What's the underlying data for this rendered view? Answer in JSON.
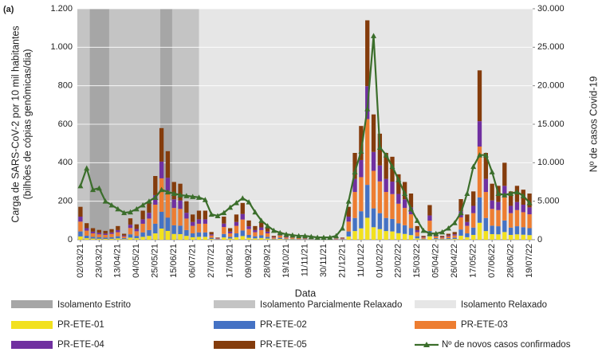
{
  "chart_data": {
    "type": "bar",
    "annotation": "(a)",
    "y_label": [
      "Carga de SARS-CoV-2 por 10 mil habitantes",
      "(bilhões de cópias genômicas/dia)"
    ],
    "y2_label": "Nº de casos Covid-19",
    "x_label": "Data",
    "regions": [
      {
        "name": "Isolamento Estrito",
        "color": "#a6a6a6"
      },
      {
        "name": "Isolamento Parcialmente Relaxado",
        "color": "#c4c4c4"
      },
      {
        "name": "Isolamento Relaxado",
        "color": "#e6e6e6"
      }
    ],
    "categories": [
      "02/03/21",
      null,
      null,
      "23/03/21",
      null,
      null,
      "13/04/21",
      null,
      null,
      "04/05/21",
      null,
      null,
      "25/05/21",
      null,
      null,
      "15/06/21",
      null,
      null,
      "06/07/21",
      null,
      null,
      "27/07/21",
      null,
      null,
      "17/08/21",
      null,
      null,
      "09/09/21",
      null,
      null,
      "28/09/21",
      null,
      null,
      "19/10/21",
      null,
      null,
      "11/11/21",
      null,
      null,
      "30/11/21",
      null,
      null,
      "21/12/21",
      null,
      null,
      "11/01/22",
      null,
      null,
      "01/02/22",
      null,
      null,
      "22/02/22",
      null,
      null,
      "15/03/22",
      null,
      null,
      "05/04/22",
      null,
      null,
      "26/04/22",
      null,
      null,
      "17/05/22",
      null,
      null,
      "07/06/22",
      null,
      null,
      "28/06/22",
      null,
      null,
      "19/07/22"
    ],
    "ylim": [
      0,
      1200
    ],
    "yticks": [
      0,
      200,
      400,
      600,
      800,
      {
        "value": 1000,
        "label": "1.000"
      },
      {
        "value": 1200,
        "label": "1.200"
      }
    ],
    "y2lim": [
      0,
      30000
    ],
    "y2ticks": [
      0,
      {
        "value": 5000,
        "label": "5.000"
      },
      {
        "value": 10000,
        "label": "10.000"
      },
      {
        "value": 15000,
        "label": "15.000"
      },
      {
        "value": 20000,
        "label": "20.000"
      },
      {
        "value": 25000,
        "label": "25.000"
      },
      {
        "value": 30000,
        "label": "30.000"
      }
    ],
    "stacked": true,
    "series": [
      {
        "name": "PR-ETE-01",
        "color": "#f2e11e",
        "values": [
          17,
          8,
          6,
          5,
          4,
          5,
          7,
          3,
          11,
          8,
          15,
          20,
          33,
          58,
          46,
          30,
          29,
          20,
          13,
          15,
          15,
          4,
          1,
          12,
          6,
          13,
          19,
          10,
          7,
          9,
          6,
          2,
          4,
          2,
          2,
          1,
          1,
          1,
          1,
          0,
          0,
          0,
          1,
          17,
          45,
          59,
          114,
          65,
          55,
          45,
          43,
          34,
          30,
          24,
          7,
          2,
          18,
          3,
          2,
          3,
          4,
          21,
          13,
          25,
          88,
          45,
          29,
          28,
          40,
          25,
          28,
          26,
          24
        ]
      },
      {
        "name": "PR-ETE-02",
        "color": "#4472c4",
        "values": [
          26,
          13,
          9,
          8,
          7,
          8,
          11,
          5,
          17,
          12,
          23,
          30,
          50,
          87,
          69,
          45,
          44,
          30,
          20,
          23,
          23,
          6,
          2,
          18,
          9,
          20,
          29,
          15,
          11,
          14,
          9,
          3,
          6,
          3,
          3,
          2,
          2,
          2,
          1,
          1,
          1,
          1,
          2,
          26,
          68,
          89,
          171,
          98,
          83,
          68,
          65,
          51,
          45,
          36,
          11,
          3,
          27,
          5,
          3,
          5,
          6,
          32,
          20,
          38,
          132,
          68,
          44,
          42,
          60,
          38,
          42,
          39,
          36
        ]
      },
      {
        "name": "PR-ETE-03",
        "color": "#ed7d31",
        "values": [
          51,
          26,
          18,
          15,
          14,
          17,
          21,
          9,
          33,
          24,
          45,
          60,
          99,
          174,
          138,
          90,
          87,
          60,
          39,
          45,
          45,
          12,
          3,
          36,
          18,
          39,
          57,
          30,
          21,
          27,
          18,
          6,
          12,
          6,
          6,
          5,
          3,
          3,
          2,
          2,
          2,
          2,
          3,
          51,
          135,
          177,
          342,
          195,
          165,
          135,
          129,
          102,
          90,
          72,
          21,
          6,
          54,
          9,
          6,
          9,
          12,
          63,
          39,
          75,
          264,
          135,
          87,
          84,
          120,
          75,
          84,
          78,
          72
        ]
      },
      {
        "name": "PR-ETE-04",
        "color": "#7030a0",
        "values": [
          26,
          13,
          9,
          8,
          7,
          8,
          11,
          5,
          17,
          12,
          23,
          30,
          50,
          87,
          69,
          45,
          44,
          30,
          20,
          23,
          23,
          6,
          2,
          18,
          9,
          20,
          29,
          15,
          11,
          14,
          9,
          3,
          6,
          3,
          3,
          2,
          2,
          2,
          1,
          1,
          1,
          1,
          2,
          26,
          68,
          89,
          171,
          98,
          83,
          68,
          65,
          51,
          45,
          36,
          11,
          3,
          27,
          5,
          3,
          5,
          6,
          32,
          20,
          38,
          132,
          68,
          44,
          42,
          60,
          38,
          42,
          39,
          36
        ]
      },
      {
        "name": "PR-ETE-05",
        "color": "#843c0c",
        "values": [
          51,
          26,
          18,
          15,
          14,
          17,
          21,
          9,
          33,
          24,
          45,
          60,
          99,
          174,
          138,
          90,
          87,
          60,
          39,
          45,
          45,
          12,
          3,
          36,
          18,
          39,
          57,
          30,
          21,
          27,
          18,
          6,
          12,
          6,
          6,
          5,
          3,
          3,
          2,
          2,
          2,
          2,
          3,
          51,
          135,
          177,
          342,
          195,
          165,
          135,
          129,
          102,
          90,
          72,
          21,
          6,
          54,
          9,
          6,
          9,
          12,
          63,
          39,
          75,
          264,
          135,
          87,
          84,
          120,
          75,
          84,
          78,
          72
        ]
      },
      {
        "name": "Nº de novos casos confirmados",
        "color": "#3b6e2b",
        "type": "line",
        "axis": "y2",
        "values": [
          7000,
          9300,
          6500,
          6700,
          5000,
          4500,
          4000,
          3500,
          3600,
          4000,
          4500,
          5000,
          5500,
          6500,
          6200,
          6000,
          5800,
          5700,
          5600,
          5500,
          5200,
          3300,
          3100,
          3500,
          4200,
          4800,
          5400,
          4900,
          3600,
          2500,
          1800,
          1200,
          900,
          700,
          600,
          500,
          500,
          400,
          300,
          300,
          300,
          500,
          1500,
          5000,
          8800,
          11500,
          17000,
          26500,
          12000,
          11000,
          9500,
          7800,
          6000,
          4000,
          2500,
          1200,
          800,
          800,
          1000,
          1500,
          2200,
          3500,
          6000,
          9500,
          11000,
          11000,
          8800,
          6000,
          5800,
          6000,
          6200,
          5700,
          4800
        ]
      }
    ]
  }
}
